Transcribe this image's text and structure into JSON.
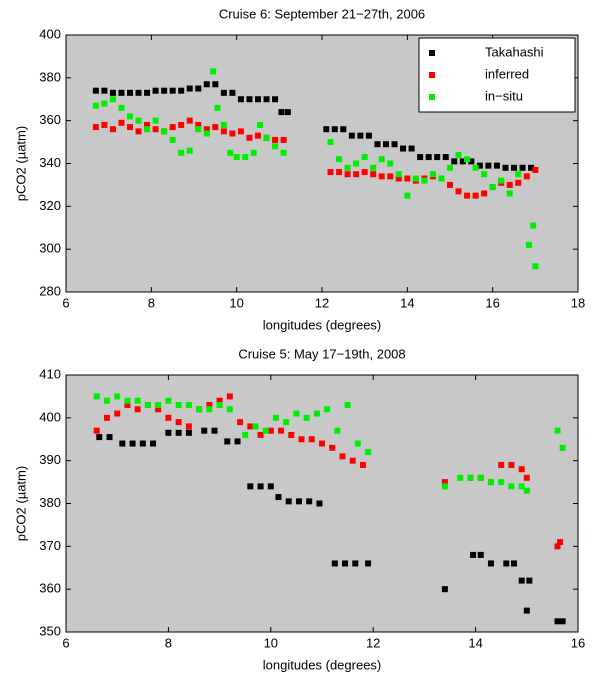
{
  "chart_data": [
    {
      "type": "scatter",
      "title": "Cruise 6: September 21−27th, 2006",
      "xlabel": "longitudes (degrees)",
      "ylabel": "pCO2 (µatm)",
      "xlim": [
        6,
        18
      ],
      "ylim": [
        280,
        400
      ],
      "xticks": [
        6,
        8,
        10,
        12,
        14,
        16,
        18
      ],
      "yticks": [
        280,
        300,
        320,
        340,
        360,
        380,
        400
      ],
      "legend": "upper right",
      "background": "#c8c8c8",
      "series": [
        {
          "name": "Takahashi",
          "color": "#000000",
          "x": [
            6.7,
            6.9,
            7.1,
            7.3,
            7.5,
            7.7,
            7.9,
            8.1,
            8.3,
            8.5,
            8.7,
            8.9,
            9.1,
            9.3,
            9.5,
            9.7,
            9.9,
            10.1,
            10.3,
            10.5,
            10.7,
            10.9,
            11.05,
            11.2,
            12.1,
            12.3,
            12.5,
            12.7,
            12.9,
            13.1,
            13.3,
            13.5,
            13.7,
            13.9,
            14.1,
            14.3,
            14.5,
            14.7,
            14.9,
            15.1,
            15.3,
            15.5,
            15.7,
            15.9,
            16.1,
            16.3,
            16.5,
            16.7,
            16.9
          ],
          "values": [
            374,
            374,
            373,
            373,
            373,
            373,
            373,
            374,
            374,
            374,
            374,
            375,
            375,
            377,
            377,
            373,
            373,
            370,
            370,
            370,
            370,
            370,
            364,
            364,
            356,
            356,
            356,
            353,
            353,
            353,
            349,
            349,
            349,
            347,
            347,
            343,
            343,
            343,
            343,
            341,
            341,
            341,
            339,
            339,
            339,
            338,
            338,
            338,
            338
          ]
        },
        {
          "name": "inferred",
          "color": "#ff0000",
          "x": [
            6.7,
            6.9,
            7.1,
            7.3,
            7.5,
            7.7,
            7.9,
            8.1,
            8.3,
            8.5,
            8.7,
            8.9,
            9.1,
            9.3,
            9.5,
            9.7,
            9.9,
            10.1,
            10.3,
            10.5,
            10.7,
            10.9,
            11.1,
            12.2,
            12.4,
            12.6,
            12.8,
            13.0,
            13.2,
            13.4,
            13.6,
            13.8,
            14.0,
            14.2,
            14.4,
            14.6,
            14.8,
            15.0,
            15.2,
            15.4,
            15.6,
            15.8,
            16.0,
            16.2,
            16.4,
            16.6,
            16.8,
            17.0
          ],
          "values": [
            357,
            358,
            356,
            359,
            357,
            355,
            358,
            356,
            355,
            357,
            358,
            360,
            358,
            356,
            357,
            355,
            354,
            355,
            352,
            353,
            352,
            351,
            351,
            336,
            336,
            335,
            335,
            336,
            335,
            334,
            334,
            333,
            333,
            332,
            333,
            334,
            333,
            330,
            327,
            325,
            325,
            326,
            329,
            331,
            330,
            331,
            334,
            337
          ]
        },
        {
          "name": "in−situ",
          "color": "#00ee00",
          "x": [
            6.7,
            6.9,
            7.1,
            7.3,
            7.5,
            7.7,
            7.9,
            8.1,
            8.3,
            8.5,
            8.7,
            8.9,
            9.1,
            9.3,
            9.45,
            9.55,
            9.7,
            9.85,
            10.0,
            10.2,
            10.4,
            10.55,
            10.7,
            10.9,
            11.1,
            12.2,
            12.4,
            12.6,
            12.8,
            13.0,
            13.2,
            13.4,
            13.6,
            13.8,
            14.0,
            14.2,
            14.4,
            14.6,
            14.8,
            15.0,
            15.2,
            15.4,
            15.6,
            15.8,
            16.0,
            16.2,
            16.4,
            16.6,
            16.85,
            16.95,
            17.0
          ],
          "values": [
            367,
            368,
            370,
            366,
            362,
            360,
            356,
            360,
            355,
            351,
            345,
            346,
            356,
            354,
            383,
            366,
            358,
            345,
            343,
            343,
            345,
            358,
            352,
            348,
            345,
            350,
            342,
            338,
            340,
            343,
            338,
            342,
            340,
            335,
            325,
            333,
            332,
            335,
            333,
            338,
            344,
            342,
            338,
            335,
            329,
            332,
            326,
            335,
            302,
            311,
            292
          ]
        }
      ]
    },
    {
      "type": "scatter",
      "title": "Cruise 5: May 17−19th, 2008",
      "xlabel": "longitudes (degrees)",
      "ylabel": "pCO2 (µatm)",
      "xlim": [
        6,
        16
      ],
      "ylim": [
        350,
        410
      ],
      "xticks": [
        6,
        8,
        10,
        12,
        14,
        16
      ],
      "yticks": [
        350,
        360,
        370,
        380,
        390,
        400,
        410
      ],
      "background": "#c8c8c8",
      "series": [
        {
          "color": "#000000",
          "x": [
            6.65,
            6.85,
            7.1,
            7.3,
            7.5,
            7.7,
            8.0,
            8.2,
            8.4,
            8.7,
            8.9,
            9.15,
            9.35,
            9.6,
            9.8,
            10.0,
            10.15,
            10.35,
            10.55,
            10.75,
            10.95,
            11.25,
            11.45,
            11.65,
            11.9,
            13.4,
            13.95,
            14.1,
            14.3,
            14.6,
            14.75,
            14.9,
            15.05,
            15.0,
            15.6,
            15.7
          ],
          "values": [
            395.5,
            395.5,
            394,
            394,
            394,
            394,
            396.5,
            396.5,
            396.5,
            397,
            397,
            394.5,
            394.5,
            384,
            384,
            384,
            381.5,
            380.5,
            380.5,
            380.5,
            380,
            366,
            366,
            366,
            366,
            360,
            368,
            368,
            366,
            366,
            366,
            362,
            362,
            355,
            352.5,
            352.5
          ]
        },
        {
          "color": "#ff0000",
          "x": [
            6.6,
            6.8,
            7.0,
            7.2,
            7.4,
            7.6,
            7.8,
            8.0,
            8.2,
            8.4,
            8.6,
            8.8,
            9.0,
            9.2,
            9.4,
            9.6,
            9.8,
            10.0,
            10.2,
            10.4,
            10.6,
            10.8,
            11.0,
            11.2,
            11.4,
            11.6,
            11.8,
            13.4,
            13.9,
            14.1,
            14.3,
            14.5,
            14.7,
            14.9,
            15.0,
            15.6,
            15.65
          ],
          "values": [
            397,
            400,
            401,
            403,
            402,
            403,
            402,
            400,
            399,
            398,
            402,
            403,
            404,
            405,
            399,
            398,
            396,
            397,
            397,
            396,
            395,
            395,
            394,
            393,
            391,
            390,
            389,
            385,
            386,
            386,
            385,
            389,
            389,
            388,
            386,
            370,
            371
          ]
        },
        {
          "color": "#00ee00",
          "x": [
            6.6,
            6.8,
            7.0,
            7.2,
            7.4,
            7.6,
            7.8,
            8.0,
            8.2,
            8.4,
            8.6,
            8.8,
            9.0,
            9.2,
            9.5,
            9.7,
            9.9,
            10.1,
            10.3,
            10.5,
            10.7,
            10.9,
            11.1,
            11.3,
            11.5,
            11.7,
            11.9,
            13.4,
            13.7,
            13.9,
            14.1,
            14.3,
            14.5,
            14.7,
            14.9,
            15.0,
            15.6,
            15.7
          ],
          "values": [
            405,
            404,
            405,
            404,
            404,
            403,
            403,
            404,
            403,
            403,
            402,
            402,
            403,
            402,
            396,
            398,
            397,
            400,
            399,
            401,
            400,
            401,
            402,
            397,
            403,
            394,
            392,
            384,
            386,
            386,
            386,
            385,
            385,
            384,
            384,
            383,
            397,
            393
          ]
        }
      ]
    }
  ]
}
